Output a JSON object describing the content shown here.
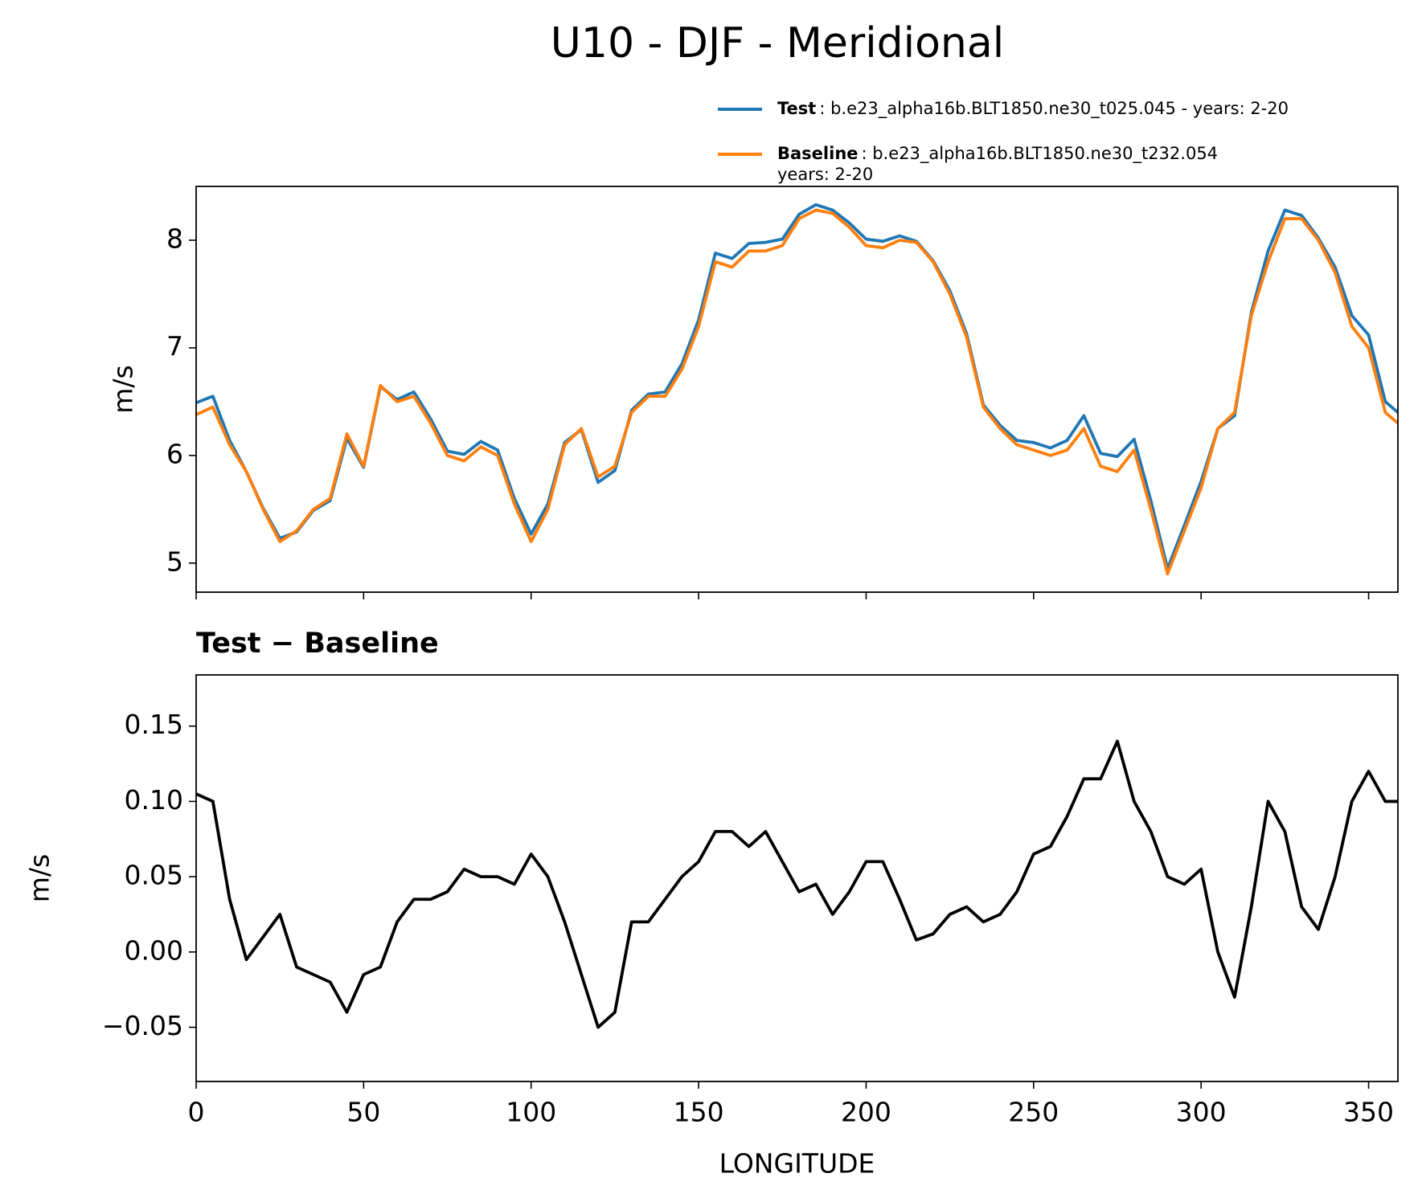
{
  "suptitle": "U10 - DJF - Meridional",
  "chart_data": [
    {
      "type": "line",
      "ylabel": "m/s",
      "show_xtick_labels": false,
      "x": [
        0,
        5,
        10,
        15,
        20,
        25,
        30,
        35,
        40,
        45,
        50,
        55,
        60,
        65,
        70,
        75,
        80,
        85,
        90,
        95,
        100,
        105,
        110,
        115,
        120,
        125,
        130,
        135,
        140,
        145,
        150,
        155,
        160,
        165,
        170,
        175,
        180,
        185,
        190,
        195,
        200,
        205,
        210,
        215,
        220,
        225,
        230,
        235,
        240,
        245,
        250,
        255,
        260,
        265,
        270,
        275,
        280,
        285,
        290,
        295,
        300,
        305,
        310,
        315,
        320,
        325,
        330,
        335,
        340,
        345,
        350,
        355,
        358.75
      ],
      "xlim": [
        0,
        358.75
      ],
      "xticks": [
        0,
        50,
        100,
        150,
        200,
        250,
        300,
        350
      ],
      "ylim": [
        4.73,
        8.5
      ],
      "yticks": [
        5,
        6,
        7,
        8
      ],
      "legend": "upper right",
      "series": [
        {
          "name": "Test",
          "description": [
            ": b.e23_alpha16b.BLT1850.ne30_t025.045 - years: 2-20"
          ],
          "color": "#1f77b4",
          "values": [
            6.49,
            6.55,
            6.14,
            5.85,
            5.51,
            5.23,
            5.29,
            5.49,
            5.58,
            6.16,
            5.89,
            6.64,
            6.52,
            6.59,
            6.34,
            6.04,
            6.01,
            6.13,
            6.05,
            5.6,
            5.27,
            5.55,
            6.12,
            6.24,
            5.75,
            5.86,
            6.42,
            6.57,
            6.59,
            6.85,
            7.26,
            7.88,
            7.83,
            7.97,
            7.98,
            8.01,
            8.24,
            8.33,
            8.28,
            8.16,
            8.01,
            7.99,
            8.04,
            7.99,
            7.81,
            7.53,
            7.13,
            6.47,
            6.28,
            6.14,
            6.12,
            6.07,
            6.14,
            6.37,
            6.02,
            5.99,
            6.15,
            5.58,
            4.95,
            5.35,
            5.76,
            6.25,
            6.37,
            7.33,
            7.9,
            8.28,
            8.23,
            8.02,
            7.75,
            7.3,
            7.12,
            6.5,
            6.4
          ]
        },
        {
          "name": "Baseline",
          "description": [
            ": b.e23_alpha16b.BLT1850.ne30_t232.054",
            "years: 2-20"
          ],
          "color": "#ff7f0e",
          "values": [
            6.38,
            6.45,
            6.1,
            5.85,
            5.5,
            5.2,
            5.3,
            5.5,
            5.6,
            6.2,
            5.9,
            6.65,
            6.5,
            6.55,
            6.3,
            6.0,
            5.95,
            6.08,
            6.0,
            5.55,
            5.2,
            5.5,
            6.1,
            6.25,
            5.8,
            5.9,
            6.4,
            6.55,
            6.55,
            6.8,
            7.2,
            7.8,
            7.75,
            7.9,
            7.9,
            7.95,
            8.2,
            8.28,
            8.25,
            8.12,
            7.95,
            7.93,
            8.0,
            7.98,
            7.8,
            7.5,
            7.1,
            6.45,
            6.25,
            6.1,
            6.05,
            6.0,
            6.05,
            6.25,
            5.9,
            5.85,
            6.05,
            5.5,
            4.9,
            5.3,
            5.7,
            6.25,
            6.4,
            7.3,
            7.8,
            8.2,
            8.2,
            8.0,
            7.7,
            7.2,
            7.0,
            6.4,
            6.3
          ]
        }
      ]
    },
    {
      "type": "line",
      "title": "Test − Baseline",
      "ylabel": "m/s",
      "xlabel": "LONGITUDE",
      "show_xtick_labels": true,
      "x": [
        0,
        5,
        10,
        15,
        20,
        25,
        30,
        35,
        40,
        45,
        50,
        55,
        60,
        65,
        70,
        75,
        80,
        85,
        90,
        95,
        100,
        105,
        110,
        115,
        120,
        125,
        130,
        135,
        140,
        145,
        150,
        155,
        160,
        165,
        170,
        175,
        180,
        185,
        190,
        195,
        200,
        205,
        210,
        215,
        220,
        225,
        230,
        235,
        240,
        245,
        250,
        255,
        260,
        265,
        270,
        275,
        280,
        285,
        290,
        295,
        300,
        305,
        310,
        315,
        320,
        325,
        330,
        335,
        340,
        345,
        350,
        355,
        358.75
      ],
      "xlim": [
        0,
        358.75
      ],
      "xticks": [
        0,
        50,
        100,
        150,
        200,
        250,
        300,
        350
      ],
      "ylim": [
        -0.086,
        0.184
      ],
      "yticks": [
        {
          "value": -0.05,
          "label": "−0.05"
        },
        {
          "value": 0,
          "label": "0.00"
        },
        {
          "value": 0.05,
          "label": "0.05"
        },
        {
          "value": 0.1,
          "label": "0.10"
        },
        {
          "value": 0.15,
          "label": "0.15"
        }
      ],
      "series": [
        {
          "color": "#000000",
          "values": [
            0.105,
            0.1,
            0.035,
            -0.005,
            0.01,
            0.025,
            -0.01,
            -0.015,
            -0.02,
            -0.04,
            -0.015,
            -0.01,
            0.02,
            0.035,
            0.035,
            0.04,
            0.055,
            0.05,
            0.05,
            0.045,
            0.065,
            0.05,
            0.02,
            -0.015,
            -0.05,
            -0.04,
            0.02,
            0.02,
            0.035,
            0.05,
            0.06,
            0.08,
            0.08,
            0.07,
            0.08,
            0.06,
            0.04,
            0.045,
            0.025,
            0.04,
            0.06,
            0.06,
            0.035,
            0.008,
            0.012,
            0.025,
            0.03,
            0.02,
            0.025,
            0.04,
            0.065,
            0.07,
            0.09,
            0.115,
            0.115,
            0.14,
            0.1,
            0.08,
            0.05,
            0.045,
            0.055,
            0.0,
            -0.03,
            0.03,
            0.1,
            0.08,
            0.03,
            0.015,
            0.05,
            0.1,
            0.12,
            0.1,
            0.1
          ]
        }
      ]
    }
  ]
}
